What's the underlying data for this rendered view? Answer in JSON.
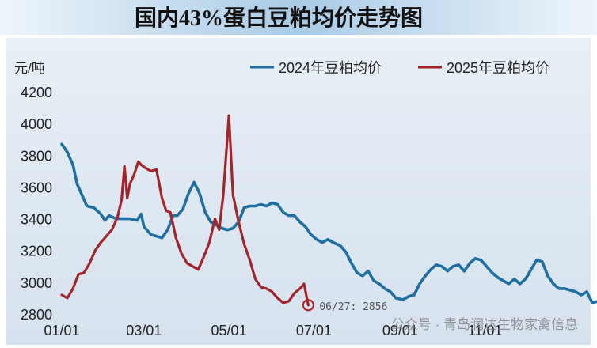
{
  "chart_data": {
    "type": "line",
    "title": "国内43%蛋白豆粕均价走势图",
    "ylabel": "元/吨",
    "xlabel": "",
    "ylim": [
      2800,
      4200
    ],
    "yticks": [
      2800,
      3000,
      3200,
      3400,
      3600,
      3800,
      4000,
      4200
    ],
    "xticks": [
      "01/01",
      "03/01",
      "05/01",
      "07/01",
      "09/01",
      "11/01"
    ],
    "legend_position": "top-right",
    "grid": false,
    "colors": {
      "background": "#dde7f1",
      "title_bg": "#a9cbe6",
      "s2024": "#1f6fa3",
      "s2025": "#a1252b",
      "axis_text": "#222222"
    },
    "series": [
      {
        "name": "2024年豆粕均价",
        "color": "#1f6fa3",
        "points": [
          [
            "01/01",
            3870
          ],
          [
            "01/05",
            3820
          ],
          [
            "01/09",
            3740
          ],
          [
            "01/12",
            3620
          ],
          [
            "01/16",
            3540
          ],
          [
            "01/19",
            3480
          ],
          [
            "01/24",
            3470
          ],
          [
            "01/29",
            3430
          ],
          [
            "02/01",
            3390
          ],
          [
            "02/04",
            3420
          ],
          [
            "02/09",
            3400
          ],
          [
            "02/14",
            3400
          ],
          [
            "02/19",
            3400
          ],
          [
            "02/24",
            3390
          ],
          [
            "02/27",
            3430
          ],
          [
            "03/01",
            3350
          ],
          [
            "03/06",
            3300
          ],
          [
            "03/10",
            3290
          ],
          [
            "03/14",
            3280
          ],
          [
            "03/18",
            3330
          ],
          [
            "03/22",
            3420
          ],
          [
            "03/25",
            3420
          ],
          [
            "03/29",
            3460
          ],
          [
            "04/02",
            3560
          ],
          [
            "04/06",
            3630
          ],
          [
            "04/10",
            3560
          ],
          [
            "04/14",
            3440
          ],
          [
            "04/18",
            3380
          ],
          [
            "04/22",
            3360
          ],
          [
            "04/26",
            3340
          ],
          [
            "04/30",
            3330
          ],
          [
            "05/04",
            3340
          ],
          [
            "05/08",
            3380
          ],
          [
            "05/12",
            3470
          ],
          [
            "05/16",
            3480
          ],
          [
            "05/20",
            3480
          ],
          [
            "05/24",
            3490
          ],
          [
            "05/28",
            3480
          ],
          [
            "06/01",
            3500
          ],
          [
            "06/05",
            3490
          ],
          [
            "06/09",
            3440
          ],
          [
            "06/13",
            3420
          ],
          [
            "06/17",
            3420
          ],
          [
            "06/21",
            3380
          ],
          [
            "06/25",
            3350
          ],
          [
            "06/29",
            3300
          ],
          [
            "07/03",
            3270
          ],
          [
            "07/07",
            3250
          ],
          [
            "07/11",
            3270
          ],
          [
            "07/15",
            3250
          ],
          [
            "07/20",
            3230
          ],
          [
            "07/24",
            3190
          ],
          [
            "07/28",
            3120
          ],
          [
            "08/01",
            3060
          ],
          [
            "08/05",
            3040
          ],
          [
            "08/09",
            3070
          ],
          [
            "08/13",
            3010
          ],
          [
            "08/17",
            2990
          ],
          [
            "08/21",
            2960
          ],
          [
            "08/25",
            2940
          ],
          [
            "08/29",
            2900
          ],
          [
            "09/03",
            2890
          ],
          [
            "09/07",
            2910
          ],
          [
            "09/11",
            2920
          ],
          [
            "09/15",
            2990
          ],
          [
            "09/19",
            3040
          ],
          [
            "09/23",
            3080
          ],
          [
            "09/27",
            3110
          ],
          [
            "10/01",
            3100
          ],
          [
            "10/05",
            3070
          ],
          [
            "10/09",
            3100
          ],
          [
            "10/13",
            3110
          ],
          [
            "10/17",
            3070
          ],
          [
            "10/21",
            3120
          ],
          [
            "10/25",
            3150
          ],
          [
            "10/29",
            3140
          ],
          [
            "11/02",
            3100
          ],
          [
            "11/06",
            3060
          ],
          [
            "11/10",
            3030
          ],
          [
            "11/14",
            3010
          ],
          [
            "11/18",
            2990
          ],
          [
            "11/22",
            3020
          ],
          [
            "11/26",
            2990
          ],
          [
            "11/30",
            3020
          ],
          [
            "12/04",
            3080
          ],
          [
            "12/08",
            3140
          ],
          [
            "12/12",
            3130
          ],
          [
            "12/16",
            3040
          ],
          [
            "12/20",
            2990
          ],
          [
            "12/24",
            2960
          ],
          [
            "12/28",
            2960
          ],
          [
            "01/01",
            2950
          ],
          [
            "01/05",
            2940
          ],
          [
            "01/09",
            2920
          ],
          [
            "01/13",
            2940
          ],
          [
            "01/17",
            2870
          ],
          [
            "01/21",
            2880
          ],
          [
            "01/25",
            2900
          ],
          [
            "01/29",
            2910
          ]
        ]
      },
      {
        "name": "2025年豆粕均价",
        "color": "#a1252b",
        "points": [
          [
            "01/01",
            2920
          ],
          [
            "01/05",
            2900
          ],
          [
            "01/09",
            2960
          ],
          [
            "01/13",
            3050
          ],
          [
            "01/17",
            3060
          ],
          [
            "01/21",
            3120
          ],
          [
            "01/25",
            3200
          ],
          [
            "01/29",
            3250
          ],
          [
            "02/02",
            3290
          ],
          [
            "02/06",
            3330
          ],
          [
            "02/10",
            3410
          ],
          [
            "02/13",
            3520
          ],
          [
            "02/15",
            3730
          ],
          [
            "02/17",
            3530
          ],
          [
            "02/19",
            3620
          ],
          [
            "02/22",
            3680
          ],
          [
            "02/25",
            3760
          ],
          [
            "02/27",
            3740
          ],
          [
            "03/02",
            3720
          ],
          [
            "03/06",
            3700
          ],
          [
            "03/10",
            3710
          ],
          [
            "03/14",
            3530
          ],
          [
            "03/17",
            3450
          ],
          [
            "03/20",
            3440
          ],
          [
            "03/24",
            3280
          ],
          [
            "03/28",
            3180
          ],
          [
            "04/01",
            3120
          ],
          [
            "04/05",
            3100
          ],
          [
            "04/09",
            3080
          ],
          [
            "04/13",
            3160
          ],
          [
            "04/17",
            3250
          ],
          [
            "04/21",
            3400
          ],
          [
            "04/24",
            3330
          ],
          [
            "04/27",
            3550
          ],
          [
            "05/01",
            4050
          ],
          [
            "05/04",
            3550
          ],
          [
            "05/08",
            3380
          ],
          [
            "05/12",
            3240
          ],
          [
            "05/16",
            3140
          ],
          [
            "05/20",
            3020
          ],
          [
            "05/24",
            2970
          ],
          [
            "05/28",
            2960
          ],
          [
            "06/01",
            2940
          ],
          [
            "06/05",
            2900
          ],
          [
            "06/09",
            2870
          ],
          [
            "06/13",
            2880
          ],
          [
            "06/17",
            2930
          ],
          [
            "06/21",
            2960
          ],
          [
            "06/24",
            2990
          ],
          [
            "06/27",
            2856
          ]
        ]
      }
    ],
    "annotations": [
      {
        "text": "06/27: 2856",
        "x": "06/27",
        "y": 2856
      }
    ],
    "watermark": "公众号 · 青岛润达生物家禽信息"
  }
}
